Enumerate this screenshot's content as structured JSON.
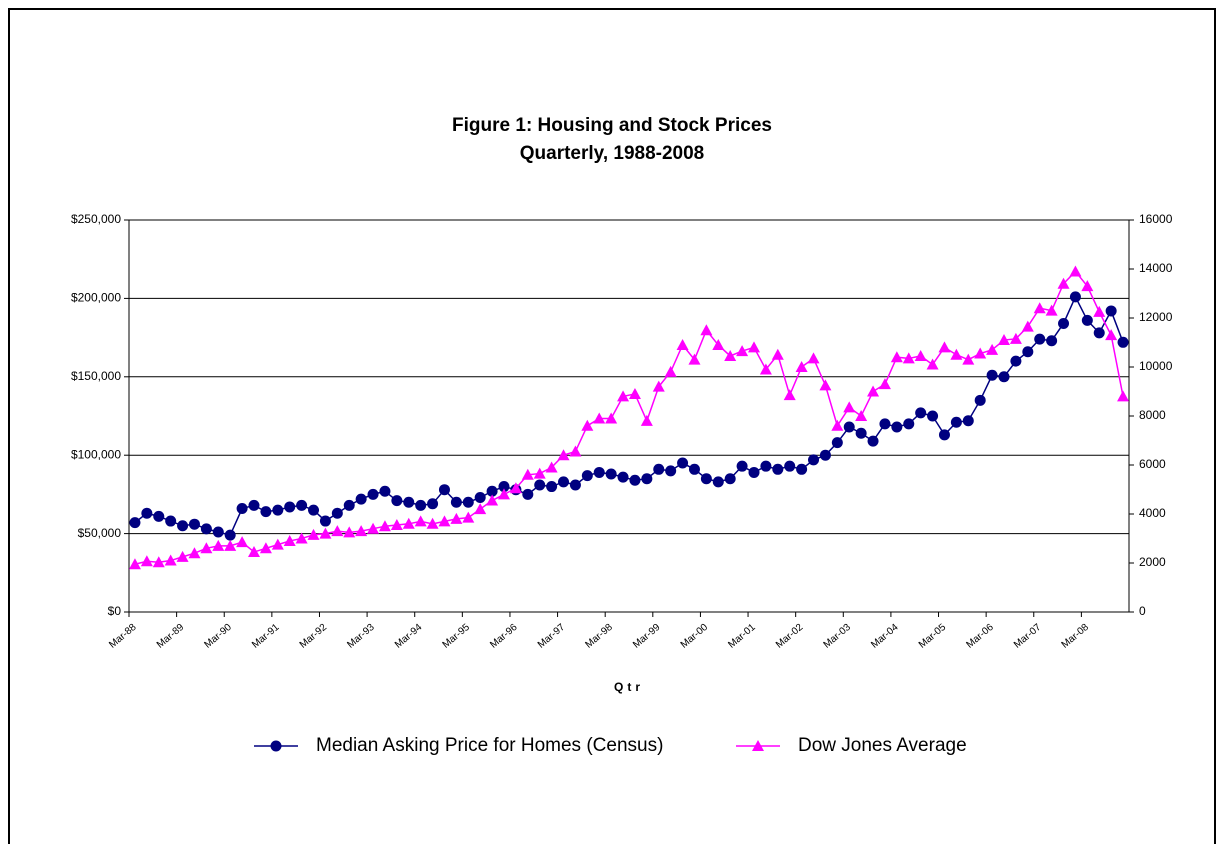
{
  "chart_data": {
    "type": "line",
    "title": "Figure 1: Housing and Stock Prices",
    "subtitle": "Quarterly, 1988-2008",
    "x_label": "Qtr",
    "categories": [
      "Mar-88",
      null,
      null,
      null,
      "Mar-89",
      null,
      null,
      null,
      "Mar-90",
      null,
      null,
      null,
      "Mar-91",
      null,
      null,
      null,
      "Mar-92",
      null,
      null,
      null,
      "Mar-93",
      null,
      null,
      null,
      "Mar-94",
      null,
      null,
      null,
      "Mar-95",
      null,
      null,
      null,
      "Mar-96",
      null,
      null,
      null,
      "Mar-97",
      null,
      null,
      null,
      "Mar-98",
      null,
      null,
      null,
      "Mar-99",
      null,
      null,
      null,
      "Mar-00",
      null,
      null,
      null,
      "Mar-01",
      null,
      null,
      null,
      "Mar-02",
      null,
      null,
      null,
      "Mar-03",
      null,
      null,
      null,
      "Mar-04",
      null,
      null,
      null,
      "Mar-05",
      null,
      null,
      null,
      "Mar-06",
      null,
      null,
      null,
      "Mar-07",
      null,
      null,
      null,
      "Mar-08",
      null,
      null,
      null
    ],
    "series": [
      {
        "name": "Median Asking Price for Homes (Census)",
        "color": "#000080",
        "marker": "circle",
        "values": [
          57000,
          63000,
          61000,
          58000,
          55000,
          56000,
          53000,
          51000,
          49000,
          66000,
          68000,
          64000,
          65000,
          67000,
          68000,
          65000,
          58000,
          63000,
          68000,
          72000,
          75000,
          77000,
          71000,
          70000,
          68000,
          69000,
          78000,
          70000,
          70000,
          73000,
          77000,
          80000,
          78000,
          75000,
          81000,
          80000,
          83000,
          81000,
          87000,
          89000,
          88000,
          86000,
          84000,
          85000,
          91000,
          90000,
          95000,
          91000,
          85000,
          83000,
          85000,
          93000,
          89000,
          93000,
          91000,
          93000,
          91000,
          97000,
          100000,
          108000,
          118000,
          114000,
          109000,
          120000,
          118000,
          120000,
          127000,
          125000,
          113000,
          121000,
          122000,
          135000,
          151000,
          150000,
          160000,
          166000,
          174000,
          173000,
          184000,
          201000,
          186000,
          178000,
          192000,
          172000
        ]
      },
      {
        "name": "Dow Jones Average",
        "color": "#ff00ff",
        "marker": "triangle",
        "axis": "y2",
        "values": [
          1950,
          2070,
          2030,
          2100,
          2250,
          2400,
          2600,
          2700,
          2700,
          2850,
          2450,
          2600,
          2750,
          2900,
          3000,
          3150,
          3200,
          3300,
          3250,
          3300,
          3400,
          3500,
          3550,
          3600,
          3700,
          3600,
          3700,
          3800,
          3850,
          4200,
          4550,
          4800,
          5050,
          5600,
          5650,
          5900,
          6400,
          6550,
          7600,
          7900,
          7900,
          8800,
          8900,
          7800,
          9200,
          9800,
          10900,
          10300,
          11500,
          10900,
          10450,
          10650,
          10800,
          9900,
          10500,
          8850,
          10000,
          10350,
          9250,
          7600,
          8350,
          8000,
          9000,
          9300,
          10400,
          10350,
          10450,
          10100,
          10800,
          10500,
          10300,
          10550,
          10700,
          11100,
          11150,
          11650,
          12400,
          12300,
          13400,
          13900,
          13300,
          12250,
          11300,
          8800
        ]
      }
    ],
    "ylim": [
      0,
      250000
    ],
    "yticks": [
      {
        "value": 0,
        "label": "$0"
      },
      {
        "value": 50000,
        "label": "$50,000"
      },
      {
        "value": 100000,
        "label": "$100,000"
      },
      {
        "value": 150000,
        "label": "$150,000"
      },
      {
        "value": 200000,
        "label": "$200,000"
      },
      {
        "value": 250000,
        "label": "$250,000"
      }
    ],
    "y2lim": [
      0,
      16000
    ],
    "y2ticks": [
      0,
      2000,
      4000,
      6000,
      8000,
      10000,
      12000,
      14000,
      16000
    ],
    "grid": true,
    "legend": "bottom"
  }
}
